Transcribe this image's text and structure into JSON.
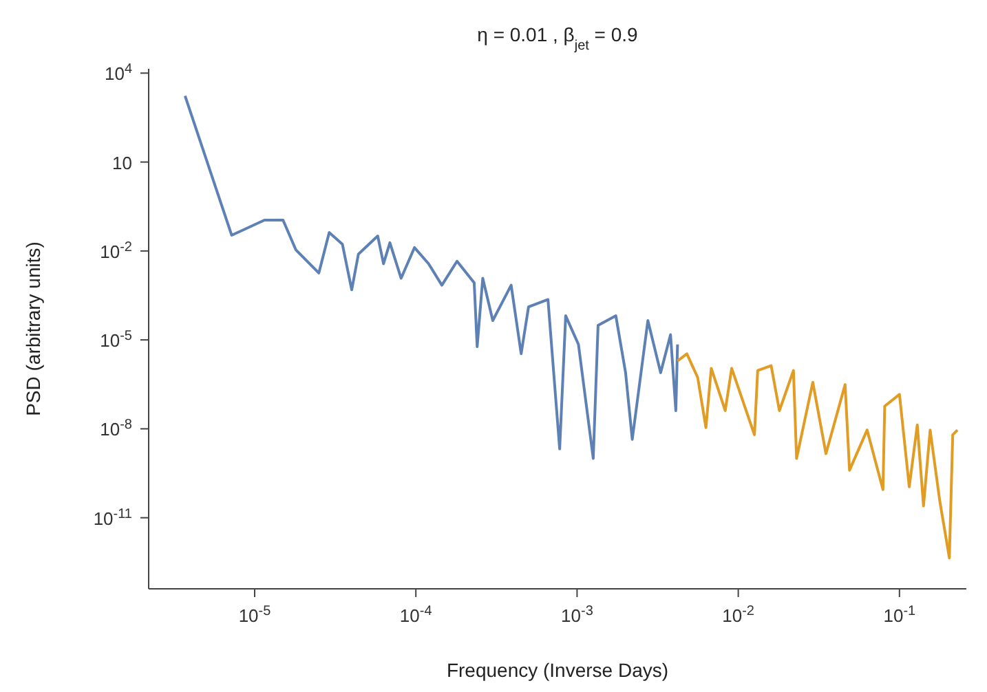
{
  "chart_data": {
    "type": "line",
    "title": "η = 0.01 , β$_{jet}$ = 0.9",
    "xlabel": "Frequency (Inverse Days)",
    "ylabel": "PSD (arbitrary units)",
    "log": "xy",
    "grid": false,
    "legend": false,
    "marker": "none",
    "line_style": "solid",
    "xlim": [
      2.2e-06,
      0.26
    ],
    "ylim": [
      4e-14,
      14000
    ],
    "xticks": [
      {
        "value": 1e-05,
        "label": "10$^{-5}$"
      },
      {
        "value": 0.0001,
        "label": "10$^{-4}$"
      },
      {
        "value": 0.001,
        "label": "10$^{-3}$"
      },
      {
        "value": 0.01,
        "label": "10$^{-2}$"
      },
      {
        "value": 0.1,
        "label": "10$^{-1}$"
      }
    ],
    "yticks": [
      {
        "value": 10000.0,
        "label": "10$^{4}$"
      },
      10,
      {
        "value": 0.01,
        "label": "10$^{-2}$"
      },
      {
        "value": 1e-05,
        "label": "10$^{-5}$"
      },
      {
        "value": 1e-08,
        "label": "10$^{-8}$"
      },
      {
        "value": 1e-11,
        "label": "10$^{-11}$"
      }
    ],
    "series": [
      {
        "color": "#5e81b5",
        "x": [
          3.7e-06,
          7.2e-06,
          1.15e-05,
          1.5e-05,
          1.8e-05,
          2.5e-05,
          2.9e-05,
          3.5e-05,
          4e-05,
          4.4e-05,
          5.8e-05,
          6.3e-05,
          6.9e-05,
          8.1e-05,
          9.8e-05,
          0.00012,
          0.000145,
          0.00018,
          0.00023,
          0.00024,
          0.00026,
          0.0003,
          0.00039,
          0.00045,
          0.0005,
          0.00066,
          0.00078,
          0.00085,
          0.00102,
          0.00126,
          0.00135,
          0.00174,
          0.002,
          0.0022,
          0.00275,
          0.0033,
          0.0038,
          0.0041,
          0.0042
        ],
        "values": [
          1700,
          0.034,
          0.11,
          0.11,
          0.011,
          0.0018,
          0.042,
          0.017,
          0.00049,
          0.0078,
          0.032,
          0.0037,
          0.019,
          0.0012,
          0.013,
          0.0037,
          0.0007,
          0.0045,
          0.00085,
          5.9e-06,
          0.0012,
          4.5e-05,
          0.0007,
          3.4e-06,
          0.00013,
          0.00023,
          2.1e-09,
          6.5e-05,
          7e-06,
          1e-09,
          3.1e-05,
          6.5e-05,
          7.8e-07,
          4.4e-09,
          4.5e-05,
          7.8e-07,
          1.5e-05,
          4.1e-08,
          7e-06
        ]
      },
      {
        "color": "#e19c24",
        "x": [
          0.0042,
          0.0048,
          0.0056,
          0.0063,
          0.0068,
          0.0083,
          0.0091,
          0.0126,
          0.0132,
          0.016,
          0.018,
          0.022,
          0.023,
          0.029,
          0.035,
          0.046,
          0.049,
          0.063,
          0.079,
          0.081,
          0.1,
          0.115,
          0.129,
          0.141,
          0.155,
          0.178,
          0.204,
          0.214,
          0.229
        ],
        "values": [
          1.95e-06,
          3.4e-06,
          5.4e-07,
          1.1e-08,
          1.1e-06,
          4.1e-08,
          1.1e-06,
          6.3e-09,
          9.3e-07,
          1.35e-06,
          4.1e-08,
          9.3e-07,
          1e-09,
          3.7e-07,
          1.45e-09,
          3.1e-07,
          4e-10,
          9.1e-09,
          8.9e-11,
          5.8e-08,
          1.45e-07,
          1.1e-10,
          1.35e-08,
          2.5e-11,
          9.1e-09,
          3.6e-11,
          4.4e-13,
          6.3e-09,
          9.1e-09
        ]
      }
    ]
  }
}
